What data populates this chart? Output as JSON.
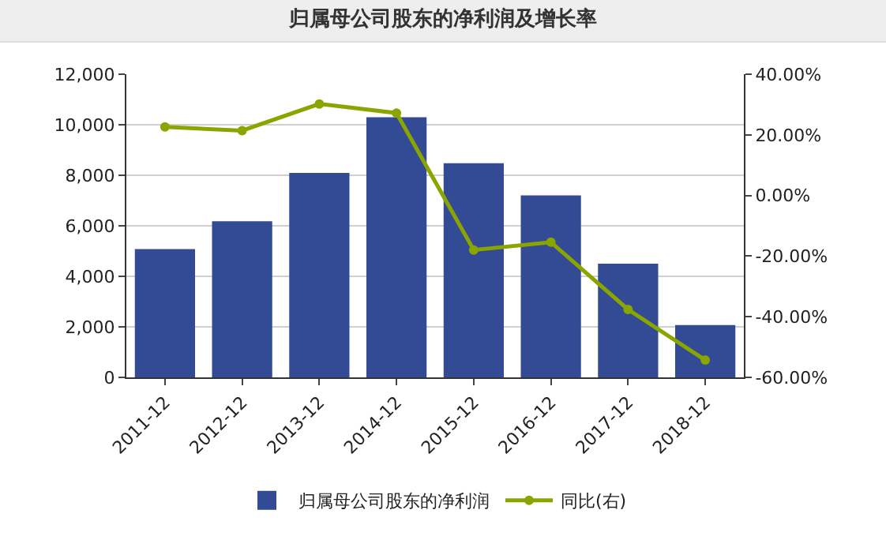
{
  "chart_data": {
    "type": "bar",
    "title": "归属母公司股东的净利润及增长率",
    "categories": [
      "2011-12",
      "2012-12",
      "2013-12",
      "2014-12",
      "2015-12",
      "2016-12",
      "2017-12",
      "2018-12"
    ],
    "series": [
      {
        "name": "归属母公司股东的净利润",
        "color": "#334a94",
        "values": [
          5080,
          6180,
          8090,
          10300,
          8480,
          7200,
          4500,
          2070
        ]
      },
      {
        "name": "同比(右)",
        "type": "line",
        "axis": "y2",
        "color": "#8aa500",
        "marker": "circle",
        "values": [
          22.6,
          21.4,
          30.2,
          27.2,
          -18.0,
          -15.4,
          -37.6,
          -54.3
        ]
      }
    ],
    "ylim": [
      0,
      12000
    ],
    "yticks": [
      {
        "value": 0,
        "label": "0"
      },
      {
        "value": 2000,
        "label": "2,000"
      },
      {
        "value": 4000,
        "label": "4,000"
      },
      {
        "value": 6000,
        "label": "6,000"
      },
      {
        "value": 8000,
        "label": "8,000"
      },
      {
        "value": 10000,
        "label": "10,000"
      },
      {
        "value": 12000,
        "label": "12,000"
      }
    ],
    "y2lim": [
      -60,
      40
    ],
    "y2ticks": [
      {
        "value": -60,
        "label": "-60.00%"
      },
      {
        "value": -40,
        "label": "-40.00%"
      },
      {
        "value": -20,
        "label": "-20.00%"
      },
      {
        "value": 0,
        "label": "0.00%"
      },
      {
        "value": 20,
        "label": "20.00%"
      },
      {
        "value": 40,
        "label": "40.00%"
      }
    ],
    "grid": "y",
    "legend": "bottom"
  }
}
